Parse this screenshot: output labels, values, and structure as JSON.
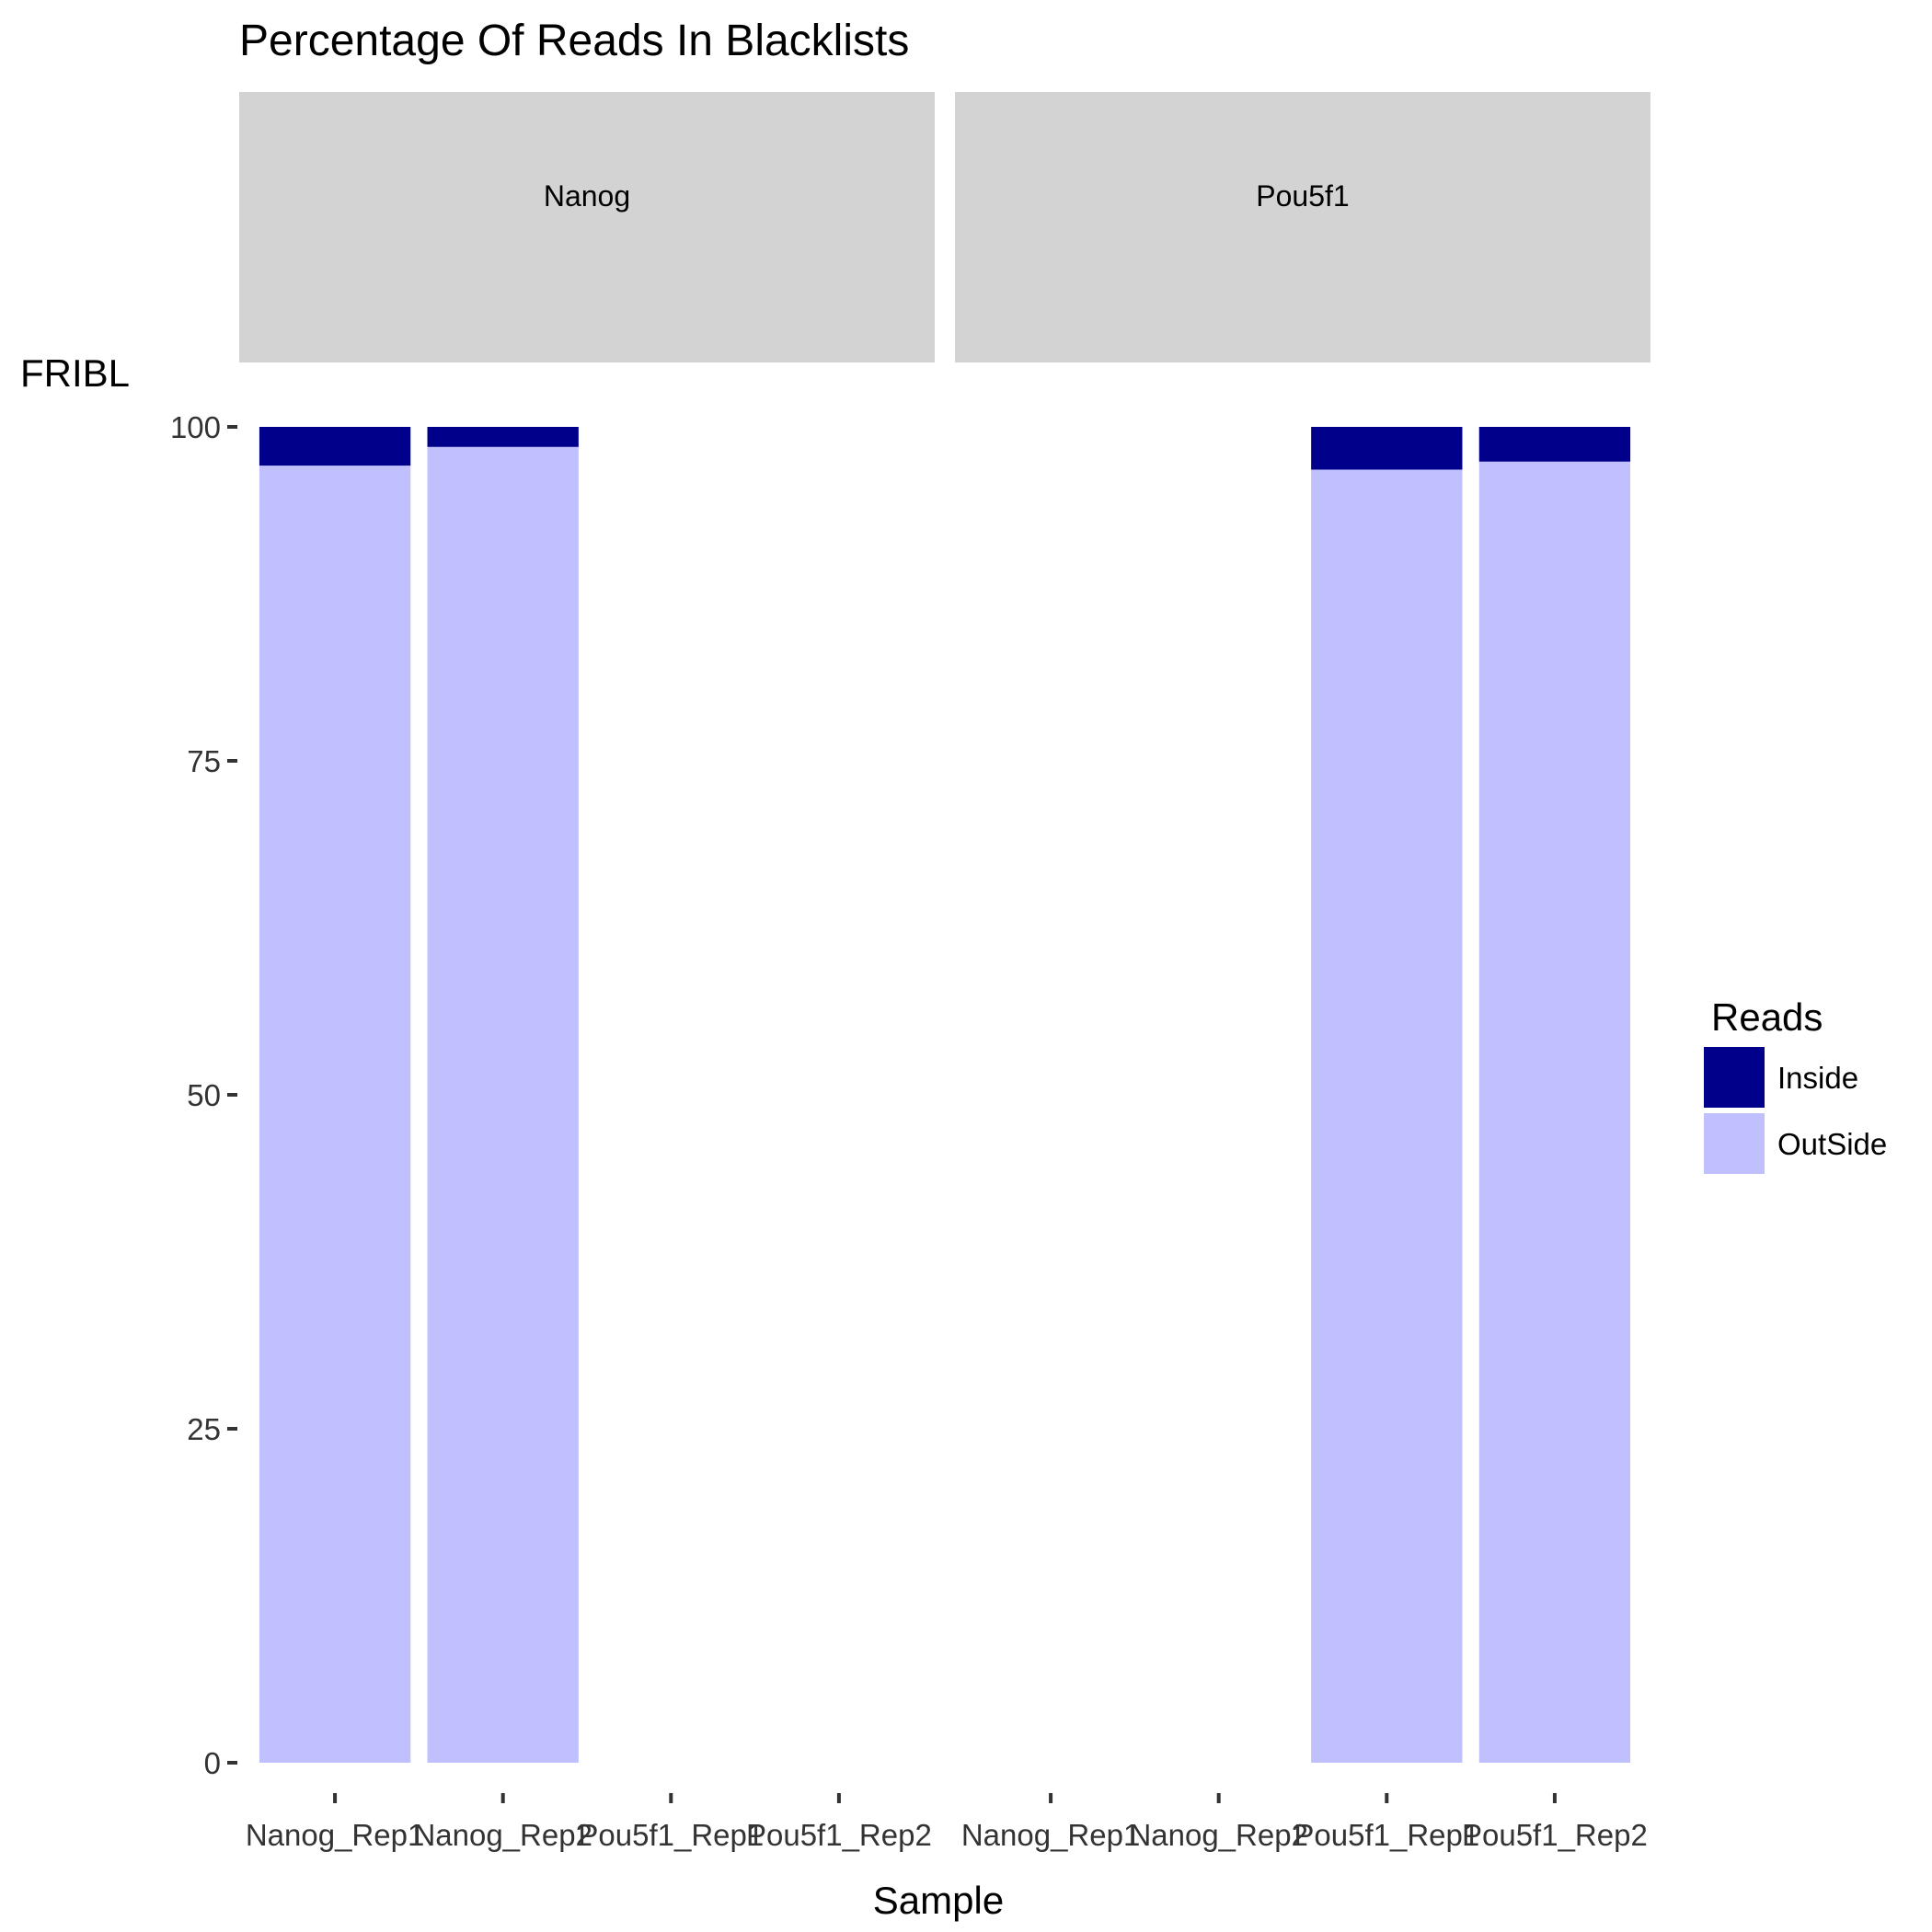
{
  "chart_data": {
    "type": "bar",
    "stacked": true,
    "title": "Percentage Of Reads In Blacklists",
    "xlabel": "Sample",
    "ylabel": "FRIBL",
    "ylim": [
      0,
      100
    ],
    "yticks": [
      0,
      25,
      50,
      75,
      100
    ],
    "grid": false,
    "legend": {
      "title": "Reads",
      "position": "right",
      "entries": [
        "Inside",
        "OutSide"
      ]
    },
    "categories": [
      "Nanog_Rep1",
      "Nanog_Rep2",
      "Pou5f1_Rep1",
      "Pou5f1_Rep2"
    ],
    "colors": {
      "Inside": "#00008B",
      "OutSide": "#C0C0FF",
      "strip": "#D3D3D3",
      "axis": "#333333"
    },
    "panels": [
      {
        "label": "Nanog",
        "series": [
          {
            "name": "OutSide",
            "values": [
              97.1,
              98.5,
              null,
              null
            ]
          },
          {
            "name": "Inside",
            "values": [
              2.9,
              1.5,
              null,
              null
            ]
          }
        ]
      },
      {
        "label": "Pou5f1",
        "series": [
          {
            "name": "OutSide",
            "values": [
              null,
              null,
              96.8,
              97.4
            ]
          },
          {
            "name": "Inside",
            "values": [
              null,
              null,
              3.2,
              2.6
            ]
          }
        ]
      }
    ]
  }
}
